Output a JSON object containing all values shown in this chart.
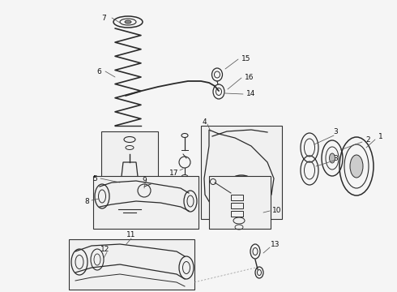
{
  "bg_color": "#f5f5f5",
  "fig_width": 4.9,
  "fig_height": 3.6,
  "dpi": 100,
  "line_color": "#2a2a2a",
  "label_color": "#111111",
  "label_fs": 6.5,
  "lw_main": 0.9,
  "lw_thin": 0.6,
  "lw_thick": 1.2
}
